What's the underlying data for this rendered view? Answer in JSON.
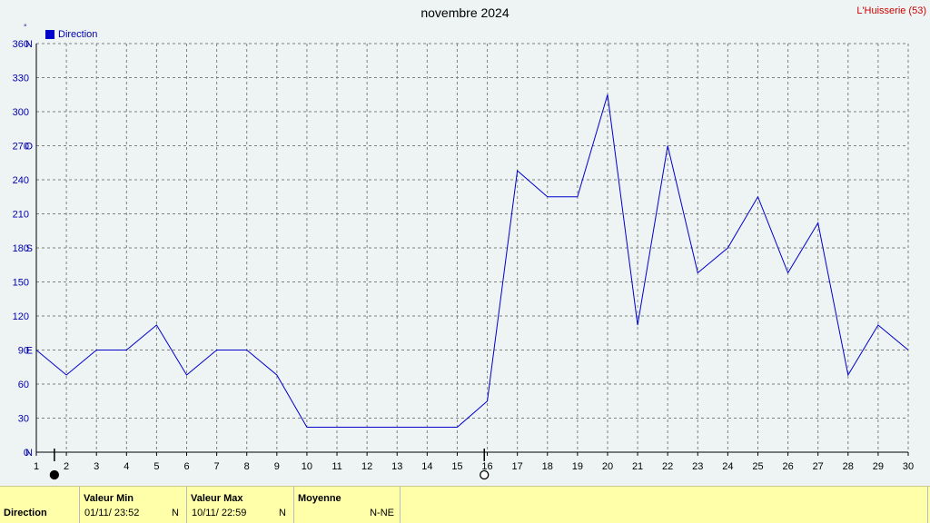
{
  "title": "novembre 2024",
  "station": "L'Huisserie (53)",
  "unit": "°",
  "legend": "Direction",
  "colors": {
    "line": "#0000cc",
    "axis_text": "#0000aa",
    "grid": "#808080",
    "plot_bg": "#eef4f4",
    "footer_bg": "#ffffaa",
    "station": "#cc0000"
  },
  "chart_data": {
    "type": "line",
    "title": "novembre 2024",
    "x": [
      1,
      2,
      3,
      4,
      5,
      6,
      7,
      8,
      9,
      10,
      11,
      12,
      13,
      14,
      15,
      16,
      17,
      18,
      19,
      20,
      21,
      22,
      23,
      24,
      25,
      26,
      27,
      28,
      29,
      30
    ],
    "series": [
      {
        "name": "Direction",
        "values": [
          90,
          68,
          90,
          90,
          112,
          68,
          90,
          90,
          68,
          22,
          22,
          22,
          22,
          22,
          22,
          45,
          248,
          225,
          225,
          315,
          112,
          270,
          158,
          180,
          225,
          158,
          202,
          68,
          112,
          90
        ]
      }
    ],
    "ylim": [
      0,
      360
    ],
    "yticks": [
      {
        "value": 0,
        "label": "0",
        "dir": "N"
      },
      {
        "value": 30,
        "label": "30",
        "dir": ""
      },
      {
        "value": 60,
        "label": "60",
        "dir": ""
      },
      {
        "value": 90,
        "label": "90",
        "dir": "E"
      },
      {
        "value": 120,
        "label": "120",
        "dir": ""
      },
      {
        "value": 150,
        "label": "150",
        "dir": ""
      },
      {
        "value": 180,
        "label": "180",
        "dir": "S"
      },
      {
        "value": 210,
        "label": "210",
        "dir": ""
      },
      {
        "value": 240,
        "label": "240",
        "dir": ""
      },
      {
        "value": 270,
        "label": "270",
        "dir": "O"
      },
      {
        "value": 300,
        "label": "300",
        "dir": ""
      },
      {
        "value": 330,
        "label": "330",
        "dir": ""
      },
      {
        "value": 360,
        "label": "360",
        "dir": "N"
      }
    ],
    "grid": true,
    "legend_position": "top-left",
    "markers": [
      {
        "type": "min",
        "x": 1.6
      },
      {
        "type": "max",
        "x": 15.9
      }
    ]
  },
  "footer": {
    "row_label": "Direction",
    "min_header": "Valeur Min",
    "min_datetime": "01/11/  23:52",
    "min_dir": "N",
    "max_header": "Valeur Max",
    "max_datetime": "10/11/  22:59",
    "max_dir": "N",
    "avg_header": "Moyenne",
    "avg_value": "N-NE"
  }
}
